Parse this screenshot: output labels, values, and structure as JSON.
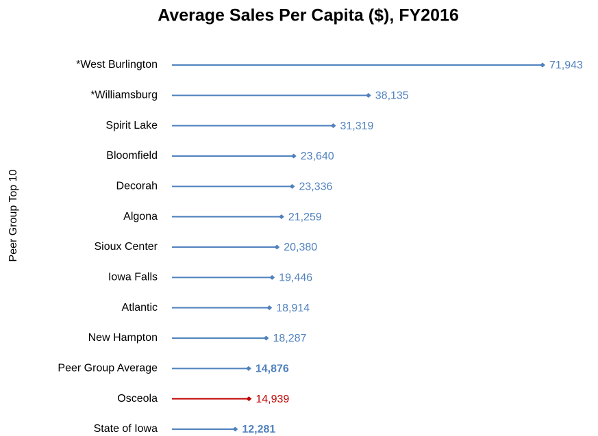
{
  "chart_data": {
    "type": "bar",
    "orientation": "horizontal",
    "title": "Average Sales Per Capita ($), FY2016",
    "y_label": "Peer Group Top 10",
    "categories": [
      "*West Burlington",
      "*Williamsburg",
      "Spirit Lake",
      "Bloomfield",
      "Decorah",
      "Algona",
      "Sioux Center",
      "Iowa Falls",
      "Atlantic",
      "New Hampton",
      "Peer Group Average",
      "Osceola",
      "State of Iowa"
    ],
    "values": [
      71943,
      38135,
      31319,
      23640,
      23336,
      21259,
      20380,
      19446,
      18914,
      18287,
      14876,
      14939,
      12281
    ],
    "value_labels": [
      "71,943",
      "38,135",
      "31,319",
      "23,640",
      "23,336",
      "21,259",
      "20,380",
      "19,446",
      "18,914",
      "18,287",
      "14,876",
      "14,939",
      "12,281"
    ],
    "colors": [
      "#4f81bd",
      "#4f81bd",
      "#4f81bd",
      "#4f81bd",
      "#4f81bd",
      "#4f81bd",
      "#4f81bd",
      "#4f81bd",
      "#4f81bd",
      "#4f81bd",
      "#4f81bd",
      "#c00000",
      "#4f81bd"
    ],
    "bold_labels": [
      false,
      false,
      false,
      false,
      false,
      false,
      false,
      false,
      false,
      false,
      true,
      false,
      true
    ]
  }
}
